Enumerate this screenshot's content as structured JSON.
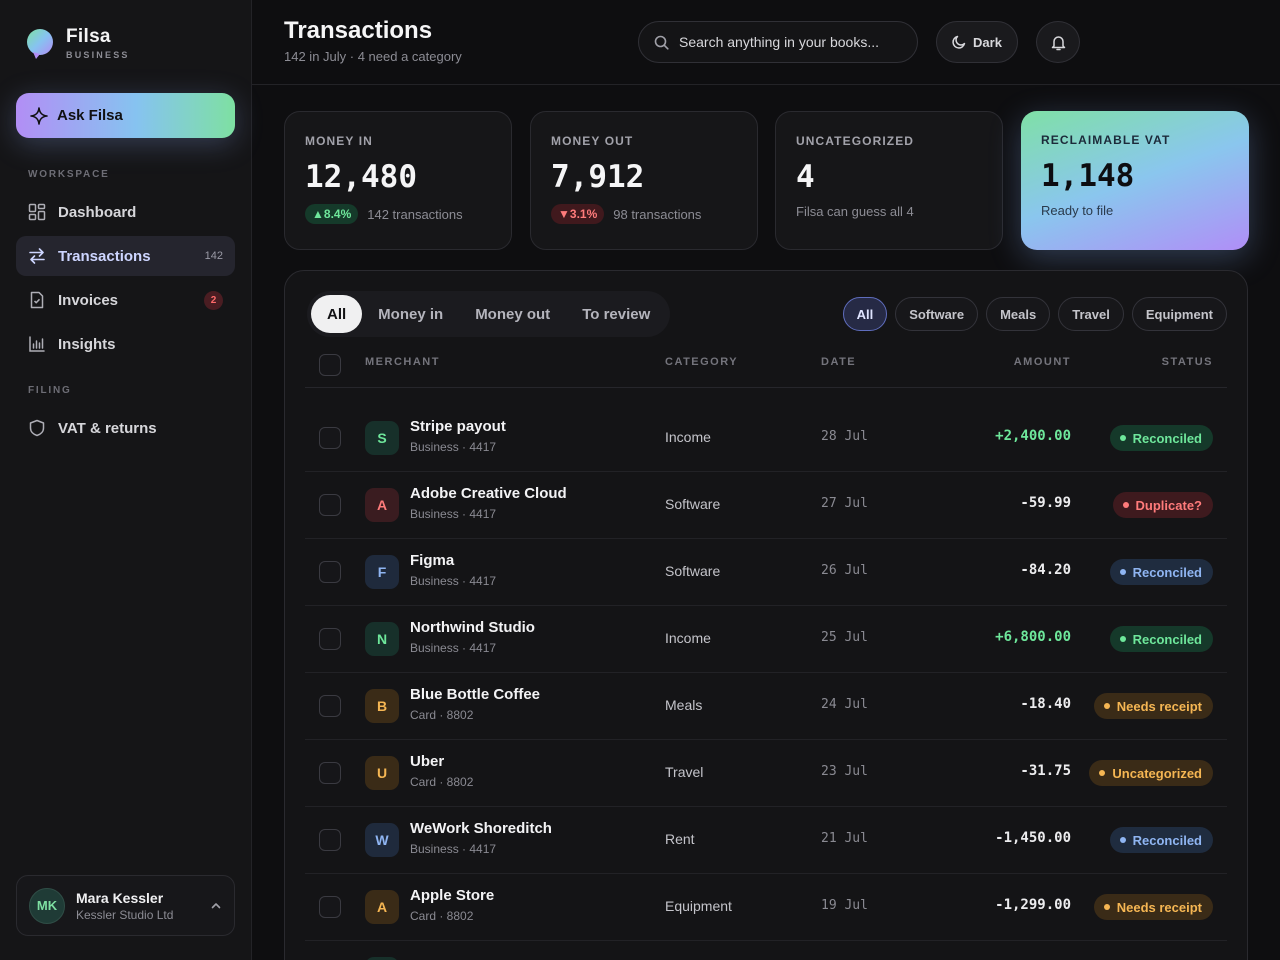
{
  "brand": {
    "name": "Filsa",
    "sub": "BUSINESS"
  },
  "ask_button": {
    "label": "Ask Filsa"
  },
  "nav": {
    "workspace_label": "WORKSPACE",
    "filing_label": "FILING",
    "items": [
      {
        "label": "Dashboard",
        "icon": "dashboard-icon"
      },
      {
        "label": "Transactions",
        "icon": "transfer-arrows-icon",
        "count": "142",
        "active": true
      },
      {
        "label": "Invoices",
        "icon": "invoice-icon",
        "badge": "2"
      },
      {
        "label": "Insights",
        "icon": "bar-chart-icon"
      },
      {
        "label": "VAT & returns",
        "icon": "shield-icon"
      }
    ]
  },
  "user": {
    "initials": "MK",
    "name": "Mara Kessler",
    "org": "Kessler Studio Ltd"
  },
  "header": {
    "title": "Transactions",
    "subtitle": "142 in July · 4 need a category",
    "search_placeholder": "Search anything in your books...",
    "theme_label": "Dark"
  },
  "stats": [
    {
      "label": "MONEY IN",
      "value": "12,480",
      "delta": "8.4%",
      "foot": "142 transactions"
    },
    {
      "label": "MONEY OUT",
      "value": "7,912",
      "delta": "3.1%",
      "foot": "98 transactions"
    },
    {
      "label": "UNCATEGORIZED",
      "value": "4",
      "foot": "Filsa can guess all 4"
    },
    {
      "label": "RECLAIMABLE VAT",
      "value": "1,148",
      "foot": "Ready to file"
    }
  ],
  "tabs": [
    "All",
    "Money in",
    "Money out",
    "To review"
  ],
  "chips": [
    "All",
    "Software",
    "Meals",
    "Travel",
    "Equipment"
  ],
  "columns": {
    "merchant": "MERCHANT",
    "category": "CATEGORY",
    "date": "DATE",
    "amount": "AMOUNT",
    "status": "STATUS"
  },
  "rows": [
    {
      "initial": "S",
      "merchant": "Stripe payout",
      "account": "Business · 4417",
      "category": "Income",
      "date": "28 Jul",
      "amount": "+2,400.00",
      "status": "Reconciled"
    },
    {
      "initial": "A",
      "merchant": "Adobe Creative Cloud",
      "account": "Business · 4417",
      "category": "Software",
      "date": "27 Jul",
      "amount": "-59.99",
      "status": "Duplicate?"
    },
    {
      "initial": "F",
      "merchant": "Figma",
      "account": "Business · 4417",
      "category": "Software",
      "date": "26 Jul",
      "amount": "-84.20",
      "status": "Reconciled"
    },
    {
      "initial": "N",
      "merchant": "Northwind Studio",
      "account": "Business · 4417",
      "category": "Income",
      "date": "25 Jul",
      "amount": "+6,800.00",
      "status": "Reconciled"
    },
    {
      "initial": "B",
      "merchant": "Blue Bottle Coffee",
      "account": "Card · 8802",
      "category": "Meals",
      "date": "24 Jul",
      "amount": "-18.40",
      "status": "Needs receipt"
    },
    {
      "initial": "U",
      "merchant": "Uber",
      "account": "Card · 8802",
      "category": "Travel",
      "date": "23 Jul",
      "amount": "-31.75",
      "status": "Uncategorized"
    },
    {
      "initial": "W",
      "merchant": "WeWork Shoreditch",
      "account": "Business · 4417",
      "category": "Rent",
      "date": "21 Jul",
      "amount": "-1,450.00",
      "status": "Reconciled"
    },
    {
      "initial": "A",
      "merchant": "Apple Store",
      "account": "Card · 8802",
      "category": "Equipment",
      "date": "19 Jul",
      "amount": "-1,299.00",
      "status": "Needs receipt"
    }
  ],
  "colors": {
    "accent": "#cdd5ff",
    "positive": "#6ee79b",
    "negative": "#ff7b7b",
    "warning": "#f5b653",
    "info": "#8fb5f2",
    "background": "#0e0e10"
  }
}
